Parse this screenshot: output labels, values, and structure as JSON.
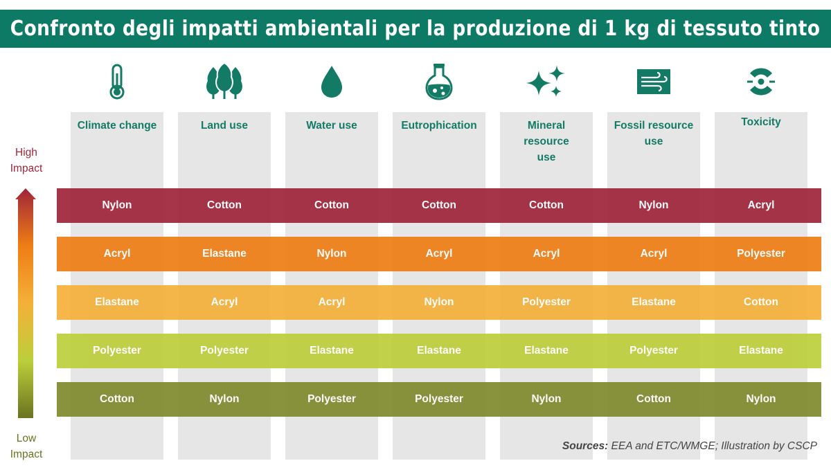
{
  "title": "Confronto degli impatti ambientali per la produzione di 1 kg di tessuto tinto",
  "colors": {
    "title_bg": "#0d7a66",
    "accent": "#137a66",
    "row_colors": [
      "#a0243a",
      "#ee7d14",
      "#f5b03a",
      "#bccf3b",
      "#7f8a2e"
    ]
  },
  "scale": {
    "high_line1": "High",
    "high_line2": "Impact",
    "low_line1": "Low",
    "low_line2": "Impact"
  },
  "categories": [
    {
      "icon": "thermometer-icon",
      "line1": "Climate change",
      "line2": "",
      "line3": ""
    },
    {
      "icon": "trees-icon",
      "line1": "Land use",
      "line2": "",
      "line3": ""
    },
    {
      "icon": "water-drop-icon",
      "line1": "Water use",
      "line2": "",
      "line3": ""
    },
    {
      "icon": "flask-icon",
      "line1": "Eutrophication",
      "line2": "",
      "line3": ""
    },
    {
      "icon": "sparkles-icon",
      "line1": "Mineral",
      "line2": "resource",
      "line3": "use"
    },
    {
      "icon": "wind-icon",
      "line1": "Fossil resource",
      "line2": "use",
      "line3": ""
    },
    {
      "icon": "toxicity-icon",
      "line1": "Toxicity",
      "line2": "",
      "line3": ""
    }
  ],
  "rows": [
    {
      "rank": "highest",
      "cells": [
        "Nylon",
        "Cotton",
        "Cotton",
        "Cotton",
        "Cotton",
        "Nylon",
        "Acryl"
      ]
    },
    {
      "rank": "high",
      "cells": [
        "Acryl",
        "Elastane",
        "Nylon",
        "Acryl",
        "Acryl",
        "Acryl",
        "Polyester"
      ]
    },
    {
      "rank": "medium",
      "cells": [
        "Elastane",
        "Acryl",
        "Acryl",
        "Nylon",
        "Polyester",
        "Elastane",
        "Cotton"
      ]
    },
    {
      "rank": "low",
      "cells": [
        "Polyester",
        "Polyester",
        "Elastane",
        "Elastane",
        "Elastane",
        "Polyester",
        "Elastane"
      ]
    },
    {
      "rank": "lowest",
      "cells": [
        "Cotton",
        "Nylon",
        "Polyester",
        "Polyester",
        "Nylon",
        "Cotton",
        "Nylon"
      ]
    }
  ],
  "sources": {
    "label": "Sources:",
    "text": " EEA and ETC/WMGE; Illustration by CSCP"
  }
}
